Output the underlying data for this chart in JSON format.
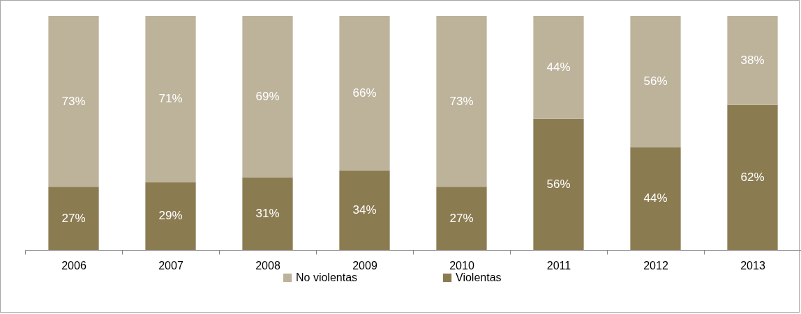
{
  "chart_data": {
    "type": "bar",
    "stacked": true,
    "categories": [
      "2006",
      "2007",
      "2008",
      "2009",
      "2010",
      "2011",
      "2012",
      "2013"
    ],
    "series": [
      {
        "name": "Violentas",
        "color": "#8b7b51",
        "values": [
          27,
          29,
          31,
          34,
          27,
          56,
          44,
          62
        ],
        "value_labels": [
          "27%",
          "29%",
          "31%",
          "34%",
          "27%",
          "56%",
          "44%",
          "62%"
        ]
      },
      {
        "name": "No violentas",
        "color": "#bdb39b",
        "values": [
          73,
          71,
          69,
          66,
          73,
          44,
          56,
          38
        ],
        "value_labels": [
          "73%",
          "71%",
          "69%",
          "66%",
          "73%",
          "44%",
          "56%",
          "38%"
        ]
      }
    ],
    "tick_labels": "x",
    "grid": false,
    "legend": "bottom"
  }
}
